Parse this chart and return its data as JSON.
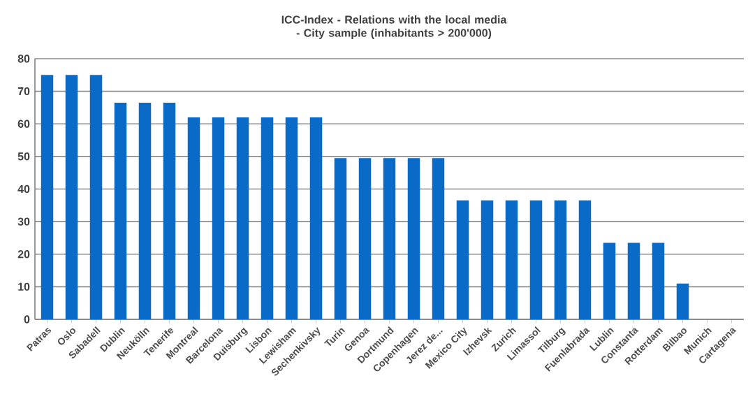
{
  "chart_data": {
    "type": "bar",
    "title": "ICC-Index - Relations with the  local media - City sample (inhabitants > 200'000)",
    "categories": [
      "Patras",
      "Oslo",
      "Sabadell",
      "Dublin",
      "Neukölln",
      "Tenerife",
      "Montreal",
      "Barcelona",
      "Duisburg",
      "Lisbon",
      "Lewisham",
      "Sechenkivsky",
      "Turin",
      "Genoa",
      "Dortmund",
      "Copenhagen",
      "Jerez de...",
      "Mexico City",
      "Izhevsk",
      "Zurich",
      "Limassol",
      "Tilburg",
      "Fuenlabrada",
      "Lublin",
      "Constanta",
      "Rotterdam",
      "Bilbao",
      "Munich",
      "Cartagena"
    ],
    "values": [
      75,
      75,
      75,
      66.5,
      66.5,
      66.5,
      62,
      62,
      62,
      62,
      62,
      62,
      49.5,
      49.5,
      49.5,
      49.5,
      49.5,
      36.5,
      36.5,
      36.5,
      36.5,
      36.5,
      36.5,
      23.5,
      23.5,
      23.5,
      11,
      0,
      0
    ],
    "color": "#0a6ac8",
    "ylim": [
      0,
      80
    ],
    "yticks": [
      0,
      10,
      20,
      30,
      40,
      50,
      60,
      70,
      80
    ],
    "grid": "y"
  }
}
